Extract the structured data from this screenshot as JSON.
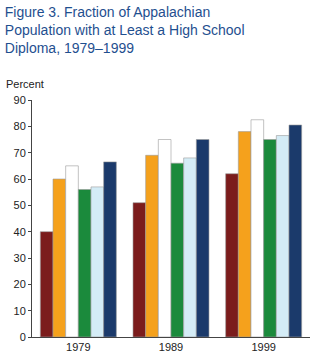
{
  "chart_data": {
    "type": "bar",
    "title": "Figure 3. Fraction of Appalachian Population with at Least a High School Diploma, 1979–1999",
    "ylabel": "Percent",
    "categories": [
      "1979",
      "1989",
      "1999"
    ],
    "series": [
      {
        "color": "#7b1c1c",
        "values": [
          40,
          51,
          62
        ]
      },
      {
        "color": "#f5a11c",
        "values": [
          60,
          69,
          78
        ]
      },
      {
        "color": "#ffffff",
        "values": [
          65,
          75,
          82.5
        ]
      },
      {
        "color": "#1b8a3c",
        "values": [
          56,
          66,
          75
        ]
      },
      {
        "color": "#d4ecf6",
        "values": [
          57,
          68,
          76.5
        ]
      },
      {
        "color": "#1b3a6b",
        "values": [
          66.5,
          75,
          80.5
        ]
      }
    ],
    "ylim": [
      0,
      90
    ],
    "yticks": [
      0,
      10,
      20,
      30,
      40,
      50,
      60,
      70,
      80,
      90
    ],
    "grid": false
  }
}
